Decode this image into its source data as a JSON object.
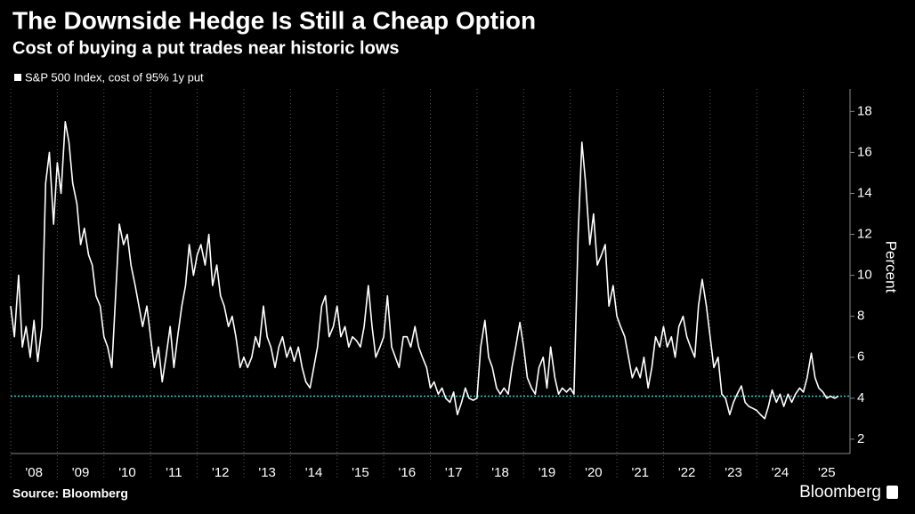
{
  "chart_data": {
    "type": "line",
    "title": "The Downside Hedge Is Still a Cheap Option",
    "subtitle": "Cost of buying a put trades near historic lows",
    "y_axis_label": "Percent",
    "source": "Source: Bloomberg",
    "brand": "Bloomberg",
    "xlim": [
      2008,
      2026
    ],
    "xticks": [
      {
        "value": 2008,
        "label": "'08"
      },
      {
        "value": 2009,
        "label": "'09"
      },
      {
        "value": 2010,
        "label": "'10"
      },
      {
        "value": 2011,
        "label": "'11"
      },
      {
        "value": 2012,
        "label": "'12"
      },
      {
        "value": 2013,
        "label": "'13"
      },
      {
        "value": 2014,
        "label": "'14"
      },
      {
        "value": 2015,
        "label": "'15"
      },
      {
        "value": 2016,
        "label": "'16"
      },
      {
        "value": 2017,
        "label": "'17"
      },
      {
        "value": 2018,
        "label": "'18"
      },
      {
        "value": 2019,
        "label": "'19"
      },
      {
        "value": 2020,
        "label": "'20"
      },
      {
        "value": 2021,
        "label": "'21"
      },
      {
        "value": 2022,
        "label": "'22"
      },
      {
        "value": 2023,
        "label": "'23"
      },
      {
        "value": 2024,
        "label": "'24"
      },
      {
        "value": 2025,
        "label": "'25"
      }
    ],
    "ylim": [
      1.3,
      19.1
    ],
    "yticks": [
      2,
      4,
      6,
      8,
      10,
      12,
      14,
      16,
      18
    ],
    "grid": true,
    "reference_line": {
      "value": 4.1,
      "color": "#33cccc"
    },
    "x": [
      2008.0,
      2008.08,
      2008.17,
      2008.25,
      2008.33,
      2008.42,
      2008.5,
      2008.58,
      2008.67,
      2008.75,
      2008.83,
      2008.92,
      2009.0,
      2009.08,
      2009.17,
      2009.25,
      2009.33,
      2009.42,
      2009.5,
      2009.58,
      2009.67,
      2009.75,
      2009.83,
      2009.92,
      2010.0,
      2010.08,
      2010.17,
      2010.25,
      2010.33,
      2010.42,
      2010.5,
      2010.58,
      2010.67,
      2010.75,
      2010.83,
      2010.92,
      2011.0,
      2011.08,
      2011.17,
      2011.25,
      2011.33,
      2011.42,
      2011.5,
      2011.58,
      2011.67,
      2011.75,
      2011.83,
      2011.92,
      2012.0,
      2012.08,
      2012.17,
      2012.25,
      2012.33,
      2012.42,
      2012.5,
      2012.58,
      2012.67,
      2012.75,
      2012.83,
      2012.92,
      2013.0,
      2013.08,
      2013.17,
      2013.25,
      2013.33,
      2013.42,
      2013.5,
      2013.58,
      2013.67,
      2013.75,
      2013.83,
      2013.92,
      2014.0,
      2014.08,
      2014.17,
      2014.25,
      2014.33,
      2014.42,
      2014.5,
      2014.58,
      2014.67,
      2014.75,
      2014.83,
      2014.92,
      2015.0,
      2015.08,
      2015.17,
      2015.25,
      2015.33,
      2015.42,
      2015.5,
      2015.58,
      2015.67,
      2015.75,
      2015.83,
      2015.92,
      2016.0,
      2016.08,
      2016.17,
      2016.25,
      2016.33,
      2016.42,
      2016.5,
      2016.58,
      2016.67,
      2016.75,
      2016.83,
      2016.92,
      2017.0,
      2017.08,
      2017.17,
      2017.25,
      2017.33,
      2017.42,
      2017.5,
      2017.58,
      2017.67,
      2017.75,
      2017.83,
      2017.92,
      2018.0,
      2018.08,
      2018.17,
      2018.25,
      2018.33,
      2018.42,
      2018.5,
      2018.58,
      2018.67,
      2018.75,
      2018.83,
      2018.92,
      2019.0,
      2019.08,
      2019.17,
      2019.25,
      2019.33,
      2019.42,
      2019.5,
      2019.58,
      2019.67,
      2019.75,
      2019.83,
      2019.92,
      2020.0,
      2020.08,
      2020.17,
      2020.25,
      2020.33,
      2020.42,
      2020.5,
      2020.58,
      2020.67,
      2020.75,
      2020.83,
      2020.92,
      2021.0,
      2021.08,
      2021.17,
      2021.25,
      2021.33,
      2021.42,
      2021.5,
      2021.58,
      2021.67,
      2021.75,
      2021.83,
      2021.92,
      2022.0,
      2022.08,
      2022.17,
      2022.25,
      2022.33,
      2022.42,
      2022.5,
      2022.58,
      2022.67,
      2022.75,
      2022.83,
      2022.92,
      2023.0,
      2023.08,
      2023.17,
      2023.25,
      2023.33,
      2023.42,
      2023.5,
      2023.58,
      2023.67,
      2023.75,
      2023.83,
      2023.92,
      2024.0,
      2024.08,
      2024.17,
      2024.25,
      2024.33,
      2024.42,
      2024.5,
      2024.58,
      2024.67,
      2024.75,
      2024.83,
      2024.92,
      2025.0,
      2025.08,
      2025.17,
      2025.25,
      2025.33,
      2025.42,
      2025.5,
      2025.58,
      2025.67,
      2025.75
    ],
    "series": [
      {
        "name": "S&P 500 Index, cost of 95% 1y put",
        "color": "#ffffff",
        "values": [
          8.5,
          7.0,
          10.0,
          6.5,
          7.5,
          6.0,
          7.8,
          5.8,
          7.5,
          14.5,
          16.0,
          12.5,
          15.5,
          14.0,
          17.5,
          16.5,
          14.5,
          13.5,
          11.5,
          12.3,
          11.0,
          10.5,
          9.0,
          8.5,
          7.0,
          6.5,
          5.5,
          9.0,
          12.5,
          11.5,
          12.0,
          10.5,
          9.5,
          8.5,
          7.5,
          8.5,
          7.0,
          5.5,
          6.5,
          4.8,
          6.0,
          7.5,
          5.5,
          7.0,
          8.5,
          9.5,
          11.5,
          10.0,
          11.0,
          11.5,
          10.5,
          12.0,
          9.5,
          10.5,
          9.0,
          8.5,
          7.5,
          8.0,
          7.0,
          5.5,
          6.0,
          5.5,
          6.0,
          7.0,
          6.5,
          8.5,
          7.0,
          6.5,
          5.5,
          6.5,
          7.0,
          6.0,
          6.5,
          5.8,
          6.5,
          5.5,
          4.8,
          4.5,
          5.5,
          6.5,
          8.5,
          9.0,
          7.0,
          7.5,
          8.5,
          7.0,
          7.5,
          6.5,
          7.0,
          6.8,
          6.5,
          7.5,
          9.5,
          7.5,
          6.0,
          6.5,
          7.0,
          9.0,
          6.5,
          6.0,
          5.5,
          7.0,
          7.0,
          6.5,
          7.5,
          6.5,
          6.0,
          5.5,
          4.5,
          4.8,
          4.2,
          4.5,
          4.0,
          3.8,
          4.3,
          3.2,
          3.8,
          4.5,
          4.0,
          3.9,
          4.0,
          6.5,
          7.8,
          6.0,
          5.5,
          4.5,
          4.2,
          4.5,
          4.2,
          5.5,
          6.5,
          7.7,
          6.5,
          5.0,
          4.5,
          4.2,
          5.5,
          6.0,
          4.5,
          6.5,
          5.0,
          4.2,
          4.5,
          4.3,
          4.5,
          4.2,
          12.0,
          16.5,
          14.5,
          11.5,
          13.0,
          10.5,
          11.0,
          11.5,
          8.5,
          9.5,
          8.0,
          7.5,
          7.0,
          6.0,
          5.0,
          5.5,
          5.0,
          6.0,
          4.5,
          5.5,
          7.0,
          6.5,
          7.5,
          6.5,
          7.0,
          6.0,
          7.5,
          8.0,
          7.0,
          6.5,
          6.0,
          8.5,
          9.8,
          8.5,
          7.0,
          5.5,
          6.0,
          4.2,
          4.0,
          3.2,
          3.8,
          4.2,
          4.6,
          3.8,
          3.6,
          3.5,
          3.4,
          3.2,
          3.0,
          3.6,
          4.4,
          3.8,
          4.2,
          3.6,
          4.2,
          3.8,
          4.2,
          4.5,
          4.3,
          5.0,
          6.2,
          5.0,
          4.5,
          4.3,
          4.0,
          4.1,
          4.0,
          4.1
        ]
      }
    ]
  }
}
